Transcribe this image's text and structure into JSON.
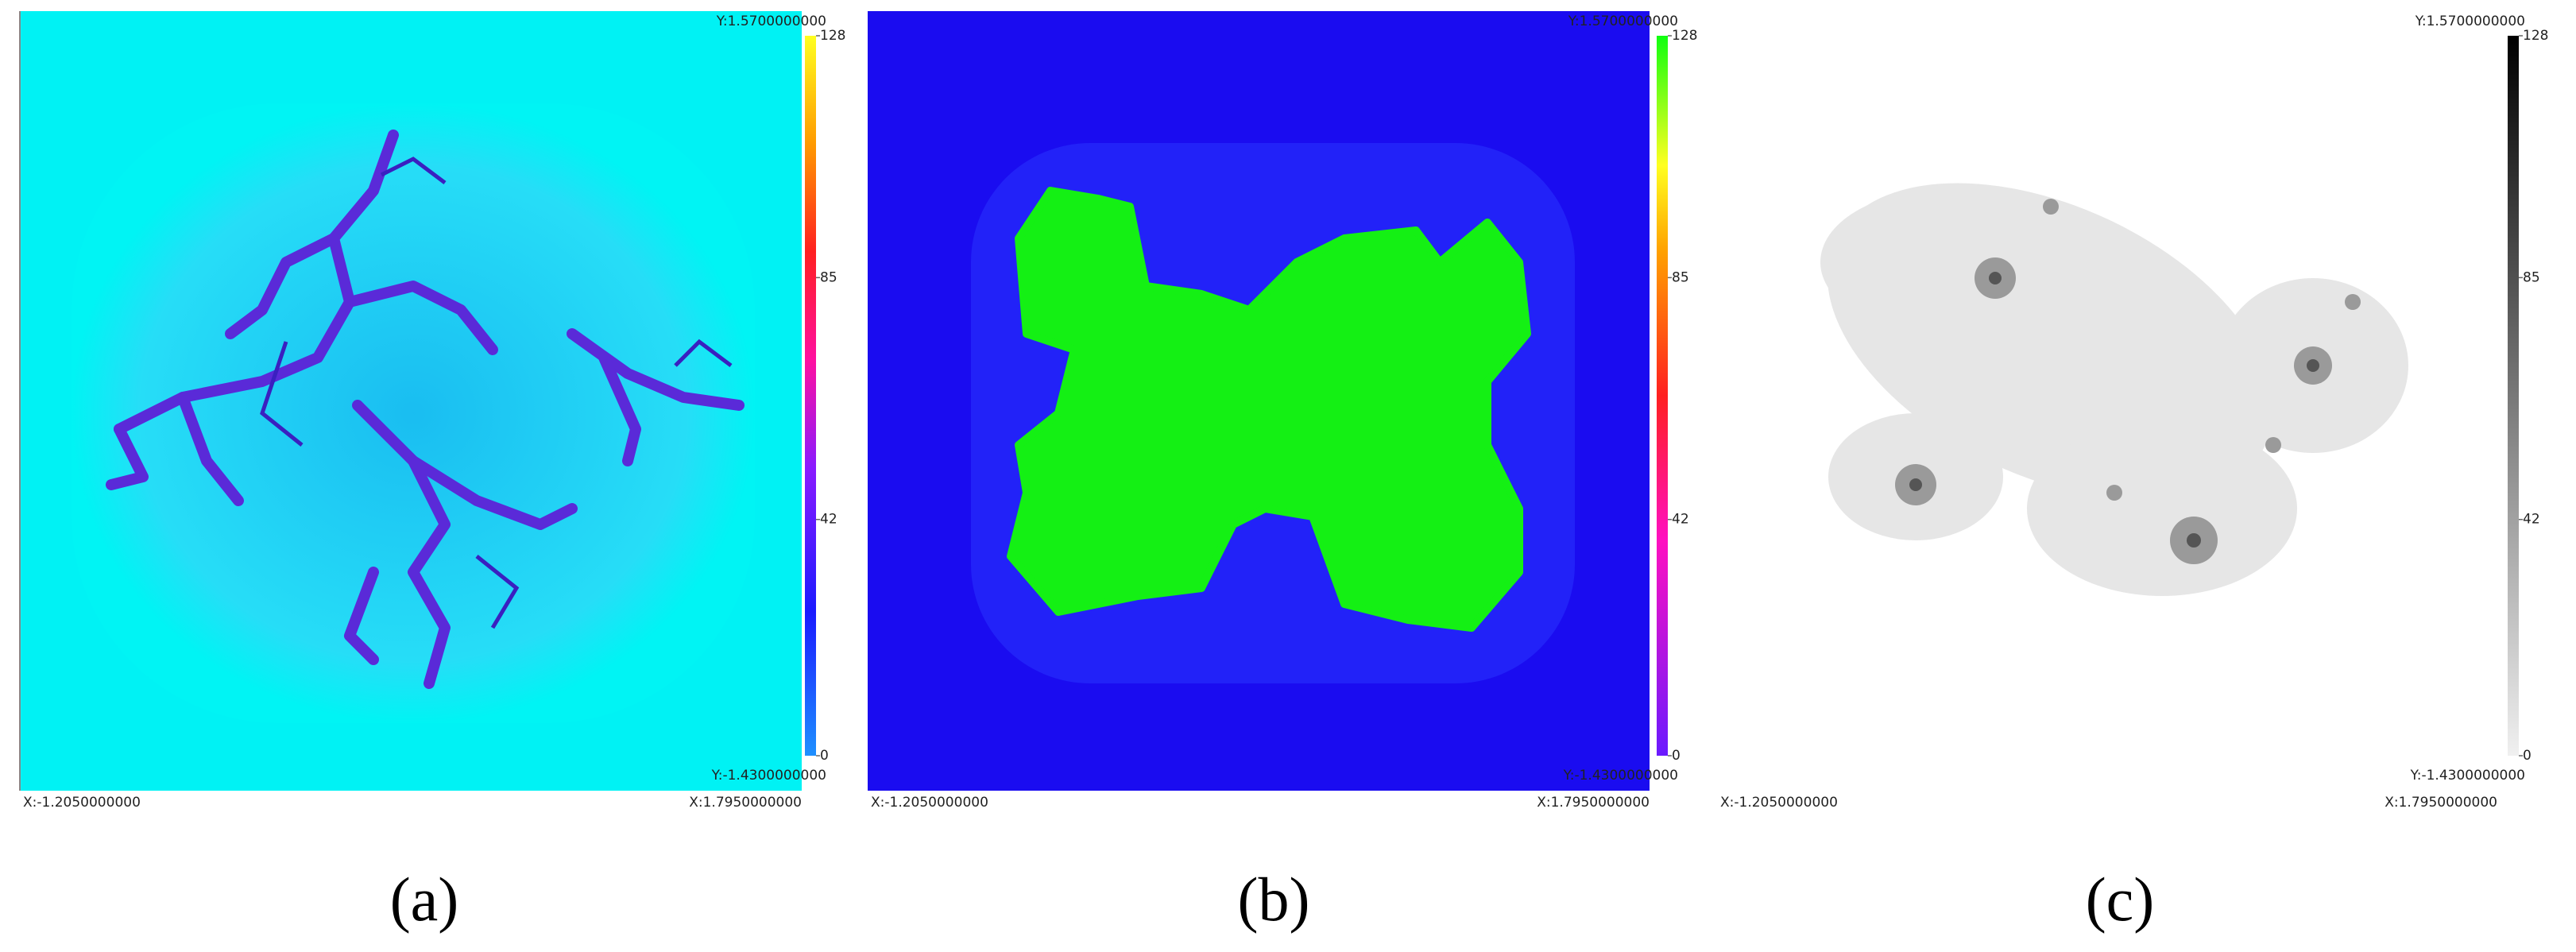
{
  "panels": [
    {
      "caption": "(a)",
      "y_max": "Y:1.5700000000",
      "y_min": "Y:-1.4300000000",
      "x_min": "X:-1.2050000000",
      "x_max": "X:1.7950000000",
      "colorbar_ticks": [
        0,
        42,
        85,
        128
      ]
    },
    {
      "caption": "(b)",
      "y_max": "Y:1.5700000000",
      "y_min": "Y:-1.4300000000",
      "x_min": "X:-1.2050000000",
      "x_max": "X:1.7950000000",
      "colorbar_ticks": [
        0,
        42,
        85,
        128
      ]
    },
    {
      "caption": "(c)",
      "y_max": "Y:1.5700000000",
      "y_min": "Y:-1.4300000000",
      "x_min": "X:-1.2050000000",
      "x_max": "X:1.7950000000",
      "colorbar_ticks": [
        0,
        42,
        85,
        128
      ]
    }
  ]
}
